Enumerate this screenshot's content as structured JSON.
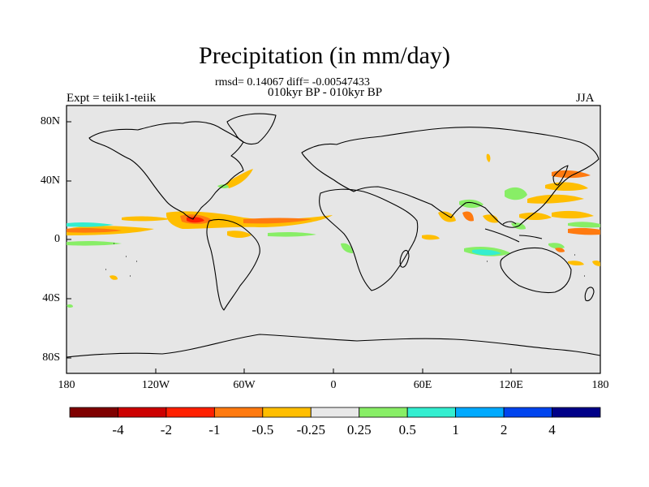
{
  "title": "Precipitation (in mm/day)",
  "stats": "rmsd= 0.14067 diff= -0.00547433",
  "period": "010kyr BP - 010kyr BP",
  "experiment": "Expt = teiik1-teiik",
  "season": "JJA",
  "lat_labels": [
    "80N",
    "40N",
    "0",
    "40S",
    "80S"
  ],
  "lon_labels": [
    "180",
    "120W",
    "60W",
    "0",
    "60E",
    "120E",
    "180"
  ],
  "colorbar": {
    "colors": [
      "#7f0000",
      "#cc0000",
      "#ff2000",
      "#ff7a10",
      "#ffbe00",
      "#e8e8e8",
      "#88ee66",
      "#33eed0",
      "#00aaff",
      "#0044ee",
      "#000088"
    ],
    "labels": [
      "-4",
      "-2",
      "-1",
      "-0.5",
      "-0.25",
      "0.25",
      "0.5",
      "1",
      "2",
      "4"
    ]
  },
  "map": {
    "background_color": "#e6e6e6",
    "coastline_color": "#000000"
  }
}
